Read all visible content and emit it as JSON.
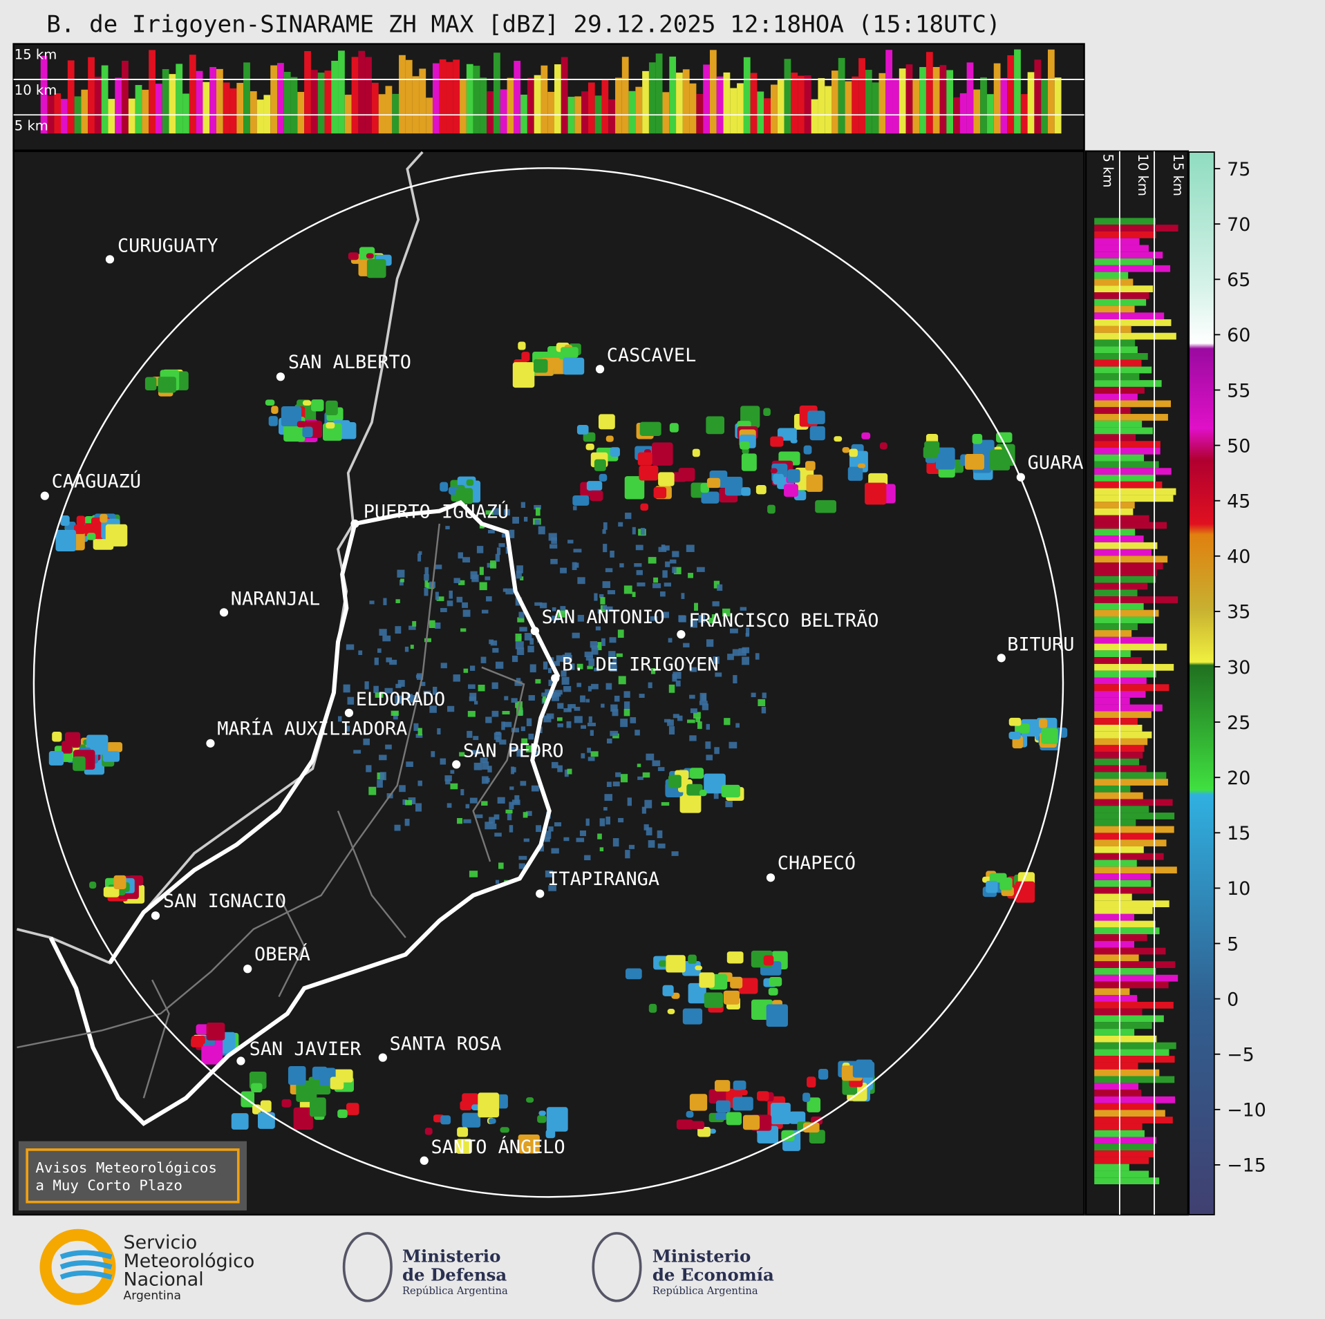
{
  "header": {
    "title": "B. de Irigoyen-SINARAME ZH MAX [dBZ] 29.12.2025 12:18HOA (15:18UTC)"
  },
  "map": {
    "cities": [
      "CURUGUATY",
      "SAN ALBERTO",
      "CAAGUAZÚ",
      "CASCAVEL",
      "GUARA",
      "PUERTO IGUAZÚ",
      "NARANJAL",
      "SAN ANTONIO",
      "FRANCISCO BELTRÃO",
      "BITURU",
      "B. DE IRIGOYEN",
      "ELDORADO",
      "MARÍA AUXILIADORA",
      "SAN PEDRO",
      "CHAPECÓ",
      "ITAPIRANGA",
      "SAN IGNACIO",
      "OBERÁ",
      "SAN JAVIER",
      "SANTA ROSA",
      "SANTO ÁNGELO"
    ],
    "notice": [
      "Avisos Meteorológicos",
      "a Muy Corto Plazo"
    ]
  },
  "profiles": {
    "top_labels": [
      "15 km",
      "10 km",
      "5 km"
    ],
    "side_labels": [
      "5 km",
      "10 km",
      "15 km"
    ]
  },
  "colorbar": {
    "lim": [
      -19.5,
      76.5
    ],
    "ticks": [
      75,
      70,
      65,
      60,
      55,
      50,
      45,
      40,
      35,
      30,
      25,
      20,
      15,
      10,
      5,
      0,
      {
        "value": -5,
        "label": "−5"
      },
      {
        "value": -10,
        "label": "−10"
      },
      {
        "value": -15,
        "label": "−15"
      }
    ]
  },
  "footer": {
    "smn": [
      "Servicio",
      "Meteorológico",
      "Nacional",
      "Argentina"
    ],
    "defensa": [
      "Ministerio",
      "de Defensa",
      "República Argentina"
    ],
    "economia": [
      "Ministerio",
      "de Economía",
      "República Argentina"
    ]
  }
}
